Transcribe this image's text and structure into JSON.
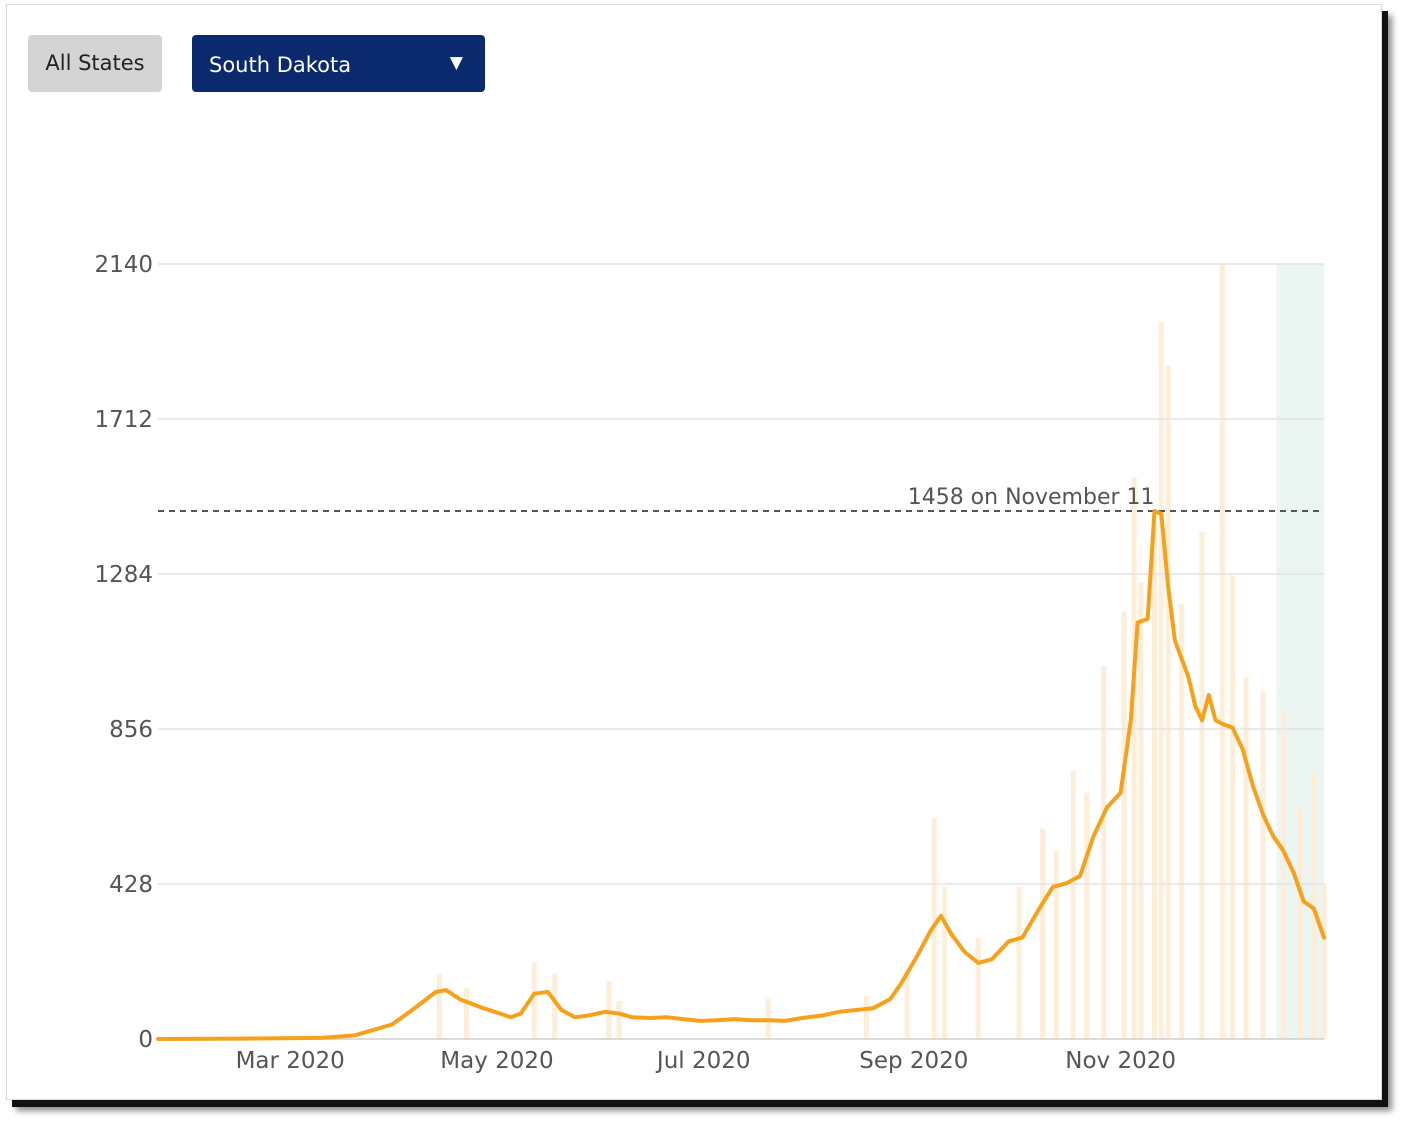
{
  "controls": {
    "all_states_label": "All States",
    "selected_state": "South Dakota",
    "dropdown_arrow": "▼"
  },
  "colors": {
    "line": "#f7a11a",
    "bars": "#fdeed9",
    "recent_shade": "#e6f3ee",
    "grid": "#e3e3e3",
    "select_bg": "#0b2a6e"
  },
  "chart_data": {
    "type": "line",
    "title": "",
    "xlabel": "",
    "ylabel": "",
    "x_range": [
      "2020-01-22",
      "2020-12-31"
    ],
    "ylim": [
      0,
      2140
    ],
    "y_ticks": [
      "2140",
      "1712",
      "1284",
      "856",
      "428",
      "0"
    ],
    "y_tick_values": [
      2140,
      1712,
      1284,
      856,
      428,
      0
    ],
    "x_ticks": [
      "Mar 2020",
      "May 2020",
      "Jul 2020",
      "Sep 2020",
      "Nov 2020"
    ],
    "x_tick_dates": [
      "2020-03-01",
      "2020-05-01",
      "2020-07-01",
      "2020-09-01",
      "2020-11-01"
    ],
    "annotation": {
      "text": "1458 on November 11",
      "value": 1458,
      "date": "2020-11-11",
      "style": "dashed"
    },
    "recent_period_shaded": [
      "2020-12-17",
      "2020-12-31"
    ],
    "series": [
      {
        "kind": "line",
        "points": [
          [
            "2020-01-22",
            0
          ],
          [
            "2020-02-15",
            1
          ],
          [
            "2020-03-10",
            3
          ],
          [
            "2020-03-20",
            10
          ],
          [
            "2020-03-31",
            40
          ],
          [
            "2020-04-06",
            80
          ],
          [
            "2020-04-13",
            130
          ],
          [
            "2020-04-16",
            135
          ],
          [
            "2020-04-20",
            110
          ],
          [
            "2020-04-27",
            85
          ],
          [
            "2020-05-02",
            70
          ],
          [
            "2020-05-05",
            60
          ],
          [
            "2020-05-08",
            70
          ],
          [
            "2020-05-12",
            125
          ],
          [
            "2020-05-16",
            130
          ],
          [
            "2020-05-20",
            80
          ],
          [
            "2020-05-24",
            60
          ],
          [
            "2020-05-28",
            65
          ],
          [
            "2020-06-02",
            75
          ],
          [
            "2020-06-06",
            70
          ],
          [
            "2020-06-10",
            60
          ],
          [
            "2020-06-15",
            58
          ],
          [
            "2020-06-20",
            60
          ],
          [
            "2020-06-25",
            55
          ],
          [
            "2020-06-30",
            50
          ],
          [
            "2020-07-05",
            52
          ],
          [
            "2020-07-10",
            55
          ],
          [
            "2020-07-15",
            52
          ],
          [
            "2020-07-20",
            52
          ],
          [
            "2020-07-25",
            50
          ],
          [
            "2020-07-30",
            58
          ],
          [
            "2020-08-05",
            65
          ],
          [
            "2020-08-10",
            75
          ],
          [
            "2020-08-15",
            80
          ],
          [
            "2020-08-20",
            85
          ],
          [
            "2020-08-25",
            110
          ],
          [
            "2020-08-28",
            150
          ],
          [
            "2020-09-02",
            230
          ],
          [
            "2020-09-06",
            300
          ],
          [
            "2020-09-09",
            340
          ],
          [
            "2020-09-12",
            290
          ],
          [
            "2020-09-16",
            240
          ],
          [
            "2020-09-20",
            210
          ],
          [
            "2020-09-24",
            220
          ],
          [
            "2020-09-29",
            270
          ],
          [
            "2020-10-03",
            280
          ],
          [
            "2020-10-08",
            360
          ],
          [
            "2020-10-12",
            420
          ],
          [
            "2020-10-16",
            430
          ],
          [
            "2020-10-20",
            450
          ],
          [
            "2020-10-24",
            560
          ],
          [
            "2020-10-28",
            640
          ],
          [
            "2020-11-01",
            680
          ],
          [
            "2020-11-04",
            880
          ],
          [
            "2020-11-06",
            1150
          ],
          [
            "2020-11-09",
            1160
          ],
          [
            "2020-11-11",
            1458
          ],
          [
            "2020-11-13",
            1450
          ],
          [
            "2020-11-15",
            1250
          ],
          [
            "2020-11-17",
            1100
          ],
          [
            "2020-11-19",
            1050
          ],
          [
            "2020-11-21",
            1000
          ],
          [
            "2020-11-23",
            920
          ],
          [
            "2020-11-25",
            880
          ],
          [
            "2020-11-27",
            950
          ],
          [
            "2020-11-29",
            880
          ],
          [
            "2020-12-01",
            870
          ],
          [
            "2020-12-04",
            860
          ],
          [
            "2020-12-07",
            800
          ],
          [
            "2020-12-10",
            700
          ],
          [
            "2020-12-13",
            620
          ],
          [
            "2020-12-16",
            560
          ],
          [
            "2020-12-19",
            520
          ],
          [
            "2020-12-22",
            460
          ],
          [
            "2020-12-25",
            380
          ],
          [
            "2020-12-28",
            360
          ],
          [
            "2020-12-31",
            280
          ]
        ]
      },
      {
        "kind": "bars",
        "points": [
          [
            "2020-04-14",
            180
          ],
          [
            "2020-04-22",
            140
          ],
          [
            "2020-05-12",
            210
          ],
          [
            "2020-05-18",
            180
          ],
          [
            "2020-06-03",
            160
          ],
          [
            "2020-06-06",
            105
          ],
          [
            "2020-07-20",
            110
          ],
          [
            "2020-08-18",
            120
          ],
          [
            "2020-08-30",
            190
          ],
          [
            "2020-09-07",
            610
          ],
          [
            "2020-09-10",
            420
          ],
          [
            "2020-09-20",
            280
          ],
          [
            "2020-10-02",
            420
          ],
          [
            "2020-10-09",
            580
          ],
          [
            "2020-10-13",
            520
          ],
          [
            "2020-10-18",
            740
          ],
          [
            "2020-10-22",
            680
          ],
          [
            "2020-10-27",
            1030
          ],
          [
            "2020-11-02",
            1180
          ],
          [
            "2020-11-05",
            1550
          ],
          [
            "2020-11-07",
            1260
          ],
          [
            "2020-11-11",
            1430
          ],
          [
            "2020-11-13",
            1980
          ],
          [
            "2020-11-15",
            1860
          ],
          [
            "2020-11-19",
            1200
          ],
          [
            "2020-11-25",
            1400
          ],
          [
            "2020-12-01",
            2140
          ],
          [
            "2020-12-04",
            1280
          ],
          [
            "2020-12-08",
            1000
          ],
          [
            "2020-12-13",
            960
          ],
          [
            "2020-12-19",
            910
          ],
          [
            "2020-12-24",
            640
          ],
          [
            "2020-12-28",
            740
          ],
          [
            "2020-12-31",
            430
          ]
        ]
      }
    ]
  }
}
